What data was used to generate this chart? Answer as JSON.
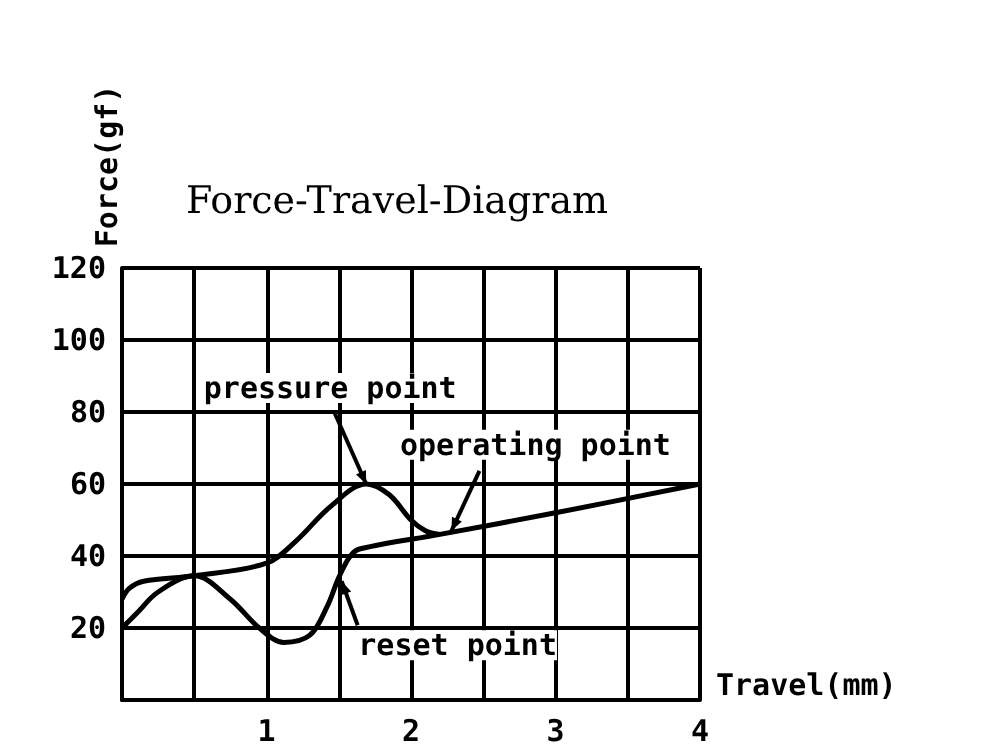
{
  "chart_data": {
    "type": "line",
    "title": "Force-Travel-Diagram",
    "xlabel": "Travel(mm)",
    "ylabel": "Force(gf)",
    "series": [
      {
        "color": "#000000",
        "x": [
          0,
          0.1,
          0.25,
          0.5,
          0.75,
          0.95,
          1.12,
          1.3,
          1.42,
          1.5,
          1.58,
          1.65,
          2.2,
          3,
          4
        ],
        "values": [
          20,
          24,
          30,
          34.5,
          28,
          20,
          16,
          18,
          26,
          34,
          40,
          42,
          46,
          52,
          60
        ]
      },
      {
        "color": "#000000",
        "x": [
          0,
          0.05,
          0.15,
          0.5,
          1,
          1.2,
          1.45,
          1.69,
          1.85,
          2,
          2.1,
          2.2
        ],
        "values": [
          28,
          31,
          33,
          34.5,
          38,
          44,
          54,
          60,
          57,
          50,
          47,
          46
        ]
      }
    ],
    "annotations": [
      {
        "text": "pressure point",
        "x": 1.69,
        "y": 60
      },
      {
        "text": "operating point",
        "x": 2.28,
        "y": 47
      },
      {
        "text": "reset point",
        "x": 1.52,
        "y": 33
      }
    ],
    "xlim": [
      0,
      4
    ],
    "xticks": [
      {
        "value": 0,
        "label": null
      },
      {
        "value": 0.5,
        "label": null
      },
      1,
      {
        "value": 1.5,
        "label": null
      },
      2,
      {
        "value": 2.5,
        "label": null
      },
      3,
      {
        "value": 3.5,
        "label": null
      },
      4
    ],
    "ylim": [
      0,
      120
    ],
    "yticks": [
      20,
      40,
      60,
      80,
      100,
      120
    ],
    "grid": true,
    "marker": "none",
    "line_style": "solid"
  }
}
